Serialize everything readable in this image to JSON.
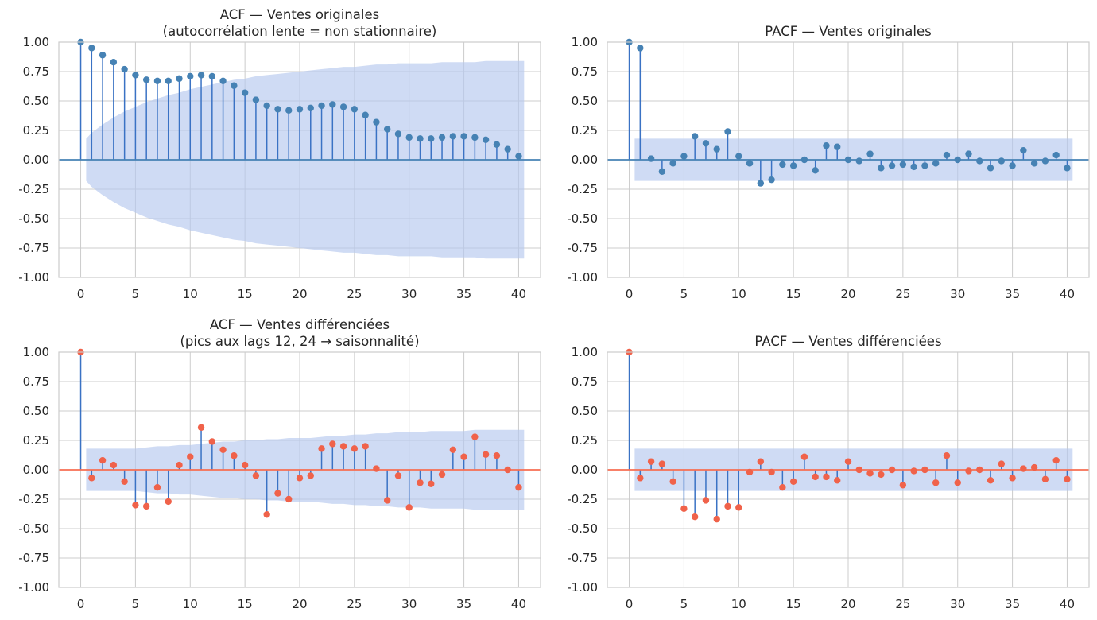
{
  "colors": {
    "stem": "#3a72c4",
    "marker_original": "#4682b4",
    "marker_diff": "#f0624a",
    "baseline_original": "#4682b4",
    "baseline_diff": "#f76e52",
    "confint": "#b6c8ee",
    "grid": "#cccccc",
    "frame": "#cccccc"
  },
  "chart_data": [
    {
      "type": "scatter",
      "subtype": "stem",
      "title": "ACF — Ventes originales\n(autocorrélation lente = non stationnaire)",
      "xlabel": "",
      "ylabel": "",
      "xlim": [
        -2,
        42
      ],
      "ylim": [
        -1,
        1
      ],
      "xticks": [
        0,
        5,
        10,
        15,
        20,
        25,
        30,
        35,
        40
      ],
      "yticks": [
        -1,
        -0.75,
        -0.5,
        -0.25,
        0,
        0.25,
        0.5,
        0.75,
        1
      ],
      "grid": true,
      "marker_color": "#4682b4",
      "baseline_color": "#4682b4",
      "x": [
        0,
        1,
        2,
        3,
        4,
        5,
        6,
        7,
        8,
        9,
        10,
        11,
        12,
        13,
        14,
        15,
        16,
        17,
        18,
        19,
        20,
        21,
        22,
        23,
        24,
        25,
        26,
        27,
        28,
        29,
        30,
        31,
        32,
        33,
        34,
        35,
        36,
        37,
        38,
        39,
        40
      ],
      "values": [
        1.0,
        0.95,
        0.89,
        0.83,
        0.77,
        0.72,
        0.68,
        0.67,
        0.67,
        0.69,
        0.71,
        0.72,
        0.71,
        0.67,
        0.63,
        0.57,
        0.51,
        0.46,
        0.43,
        0.42,
        0.43,
        0.44,
        0.46,
        0.47,
        0.45,
        0.43,
        0.38,
        0.32,
        0.26,
        0.22,
        0.19,
        0.18,
        0.18,
        0.19,
        0.2,
        0.2,
        0.19,
        0.17,
        0.13,
        0.09,
        0.03
      ],
      "confint_x": [
        0.5,
        1,
        2,
        3,
        4,
        5,
        6,
        7,
        8,
        9,
        10,
        11,
        12,
        13,
        14,
        15,
        16,
        17,
        18,
        19,
        20,
        21,
        22,
        23,
        24,
        25,
        26,
        27,
        28,
        29,
        30,
        31,
        32,
        33,
        34,
        35,
        36,
        37,
        38,
        39,
        40,
        40.5
      ],
      "confint_half": [
        0.18,
        0.23,
        0.3,
        0.36,
        0.41,
        0.45,
        0.49,
        0.52,
        0.55,
        0.57,
        0.6,
        0.62,
        0.64,
        0.66,
        0.68,
        0.69,
        0.71,
        0.72,
        0.73,
        0.74,
        0.75,
        0.76,
        0.77,
        0.78,
        0.79,
        0.79,
        0.8,
        0.81,
        0.81,
        0.82,
        0.82,
        0.82,
        0.82,
        0.83,
        0.83,
        0.83,
        0.83,
        0.84,
        0.84,
        0.84,
        0.84,
        0.84
      ]
    },
    {
      "type": "scatter",
      "subtype": "stem",
      "title": "PACF — Ventes originales",
      "xlabel": "",
      "ylabel": "",
      "xlim": [
        -2,
        42
      ],
      "ylim": [
        -1,
        1
      ],
      "xticks": [
        0,
        5,
        10,
        15,
        20,
        25,
        30,
        35,
        40
      ],
      "yticks": [
        -1,
        -0.75,
        -0.5,
        -0.25,
        0,
        0.25,
        0.5,
        0.75,
        1
      ],
      "grid": true,
      "marker_color": "#4682b4",
      "baseline_color": "#4682b4",
      "x": [
        0,
        1,
        2,
        3,
        4,
        5,
        6,
        7,
        8,
        9,
        10,
        11,
        12,
        13,
        14,
        15,
        16,
        17,
        18,
        19,
        20,
        21,
        22,
        23,
        24,
        25,
        26,
        27,
        28,
        29,
        30,
        31,
        32,
        33,
        34,
        35,
        36,
        37,
        38,
        39,
        40
      ],
      "values": [
        1.0,
        0.95,
        0.01,
        -0.1,
        -0.03,
        0.03,
        0.2,
        0.14,
        0.09,
        0.24,
        0.03,
        -0.03,
        -0.2,
        -0.17,
        -0.04,
        -0.05,
        0.0,
        -0.09,
        0.12,
        0.11,
        0.0,
        -0.01,
        0.05,
        -0.07,
        -0.05,
        -0.04,
        -0.06,
        -0.05,
        -0.03,
        0.04,
        0.0,
        0.05,
        -0.01,
        -0.07,
        -0.01,
        -0.05,
        0.08,
        -0.03,
        -0.01,
        0.04,
        -0.07
      ],
      "confint_x": [
        0.5,
        40.5
      ],
      "confint_half": [
        0.18,
        0.18
      ]
    },
    {
      "type": "scatter",
      "subtype": "stem",
      "title": "ACF — Ventes différenciées\n(pics aux lags 12, 24 → saisonnalité)",
      "xlabel": "",
      "ylabel": "",
      "xlim": [
        -2,
        42
      ],
      "ylim": [
        -1,
        1
      ],
      "xticks": [
        0,
        5,
        10,
        15,
        20,
        25,
        30,
        35,
        40
      ],
      "yticks": [
        -1,
        -0.75,
        -0.5,
        -0.25,
        0,
        0.25,
        0.5,
        0.75,
        1
      ],
      "grid": true,
      "marker_color": "#f0624a",
      "baseline_color": "#f76e52",
      "x": [
        0,
        1,
        2,
        3,
        4,
        5,
        6,
        7,
        8,
        9,
        10,
        11,
        12,
        13,
        14,
        15,
        16,
        17,
        18,
        19,
        20,
        21,
        22,
        23,
        24,
        25,
        26,
        27,
        28,
        29,
        30,
        31,
        32,
        33,
        34,
        35,
        36,
        37,
        38,
        39,
        40
      ],
      "values": [
        1.0,
        -0.07,
        0.08,
        0.04,
        -0.1,
        -0.3,
        -0.31,
        -0.15,
        -0.27,
        0.04,
        0.11,
        0.36,
        0.24,
        0.17,
        0.12,
        0.04,
        -0.05,
        -0.38,
        -0.2,
        -0.25,
        -0.07,
        -0.05,
        0.18,
        0.22,
        0.2,
        0.18,
        0.2,
        0.01,
        -0.26,
        -0.05,
        -0.32,
        -0.11,
        -0.12,
        -0.04,
        0.17,
        0.11,
        0.28,
        0.13,
        0.12,
        0.0,
        -0.15
      ],
      "confint_x": [
        0.5,
        1,
        2,
        3,
        4,
        5,
        6,
        7,
        8,
        9,
        10,
        11,
        12,
        13,
        14,
        15,
        16,
        17,
        18,
        19,
        20,
        21,
        22,
        23,
        24,
        25,
        26,
        27,
        28,
        29,
        30,
        31,
        32,
        33,
        34,
        35,
        36,
        37,
        38,
        39,
        40,
        40.5
      ],
      "confint_half": [
        0.18,
        0.18,
        0.18,
        0.18,
        0.18,
        0.18,
        0.19,
        0.2,
        0.2,
        0.21,
        0.21,
        0.22,
        0.23,
        0.24,
        0.24,
        0.25,
        0.25,
        0.26,
        0.26,
        0.27,
        0.27,
        0.27,
        0.28,
        0.29,
        0.29,
        0.3,
        0.3,
        0.31,
        0.31,
        0.32,
        0.32,
        0.32,
        0.33,
        0.33,
        0.33,
        0.33,
        0.34,
        0.34,
        0.34,
        0.34,
        0.34,
        0.34
      ]
    },
    {
      "type": "scatter",
      "subtype": "stem",
      "title": "PACF — Ventes différenciées",
      "xlabel": "",
      "ylabel": "",
      "xlim": [
        -2,
        42
      ],
      "ylim": [
        -1,
        1
      ],
      "xticks": [
        0,
        5,
        10,
        15,
        20,
        25,
        30,
        35,
        40
      ],
      "yticks": [
        -1,
        -0.75,
        -0.5,
        -0.25,
        0,
        0.25,
        0.5,
        0.75,
        1
      ],
      "grid": true,
      "marker_color": "#f0624a",
      "baseline_color": "#f76e52",
      "x": [
        0,
        1,
        2,
        3,
        4,
        5,
        6,
        7,
        8,
        9,
        10,
        11,
        12,
        13,
        14,
        15,
        16,
        17,
        18,
        19,
        20,
        21,
        22,
        23,
        24,
        25,
        26,
        27,
        28,
        29,
        30,
        31,
        32,
        33,
        34,
        35,
        36,
        37,
        38,
        39,
        40
      ],
      "values": [
        1.0,
        -0.07,
        0.07,
        0.05,
        -0.1,
        -0.33,
        -0.4,
        -0.26,
        -0.42,
        -0.31,
        -0.32,
        -0.02,
        0.07,
        -0.02,
        -0.15,
        -0.1,
        0.11,
        -0.06,
        -0.06,
        -0.09,
        0.07,
        0.0,
        -0.03,
        -0.04,
        0.0,
        -0.13,
        -0.01,
        0.0,
        -0.11,
        0.12,
        -0.11,
        -0.01,
        0.0,
        -0.09,
        0.05,
        -0.07,
        0.01,
        0.02,
        -0.08,
        0.08,
        -0.08
      ],
      "confint_x": [
        0.5,
        40.5
      ],
      "confint_half": [
        0.18,
        0.18
      ]
    }
  ]
}
